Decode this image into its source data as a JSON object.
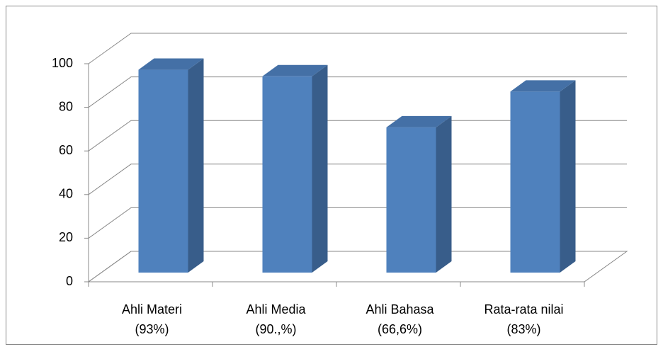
{
  "chart_data": {
    "type": "bar3d",
    "categories": [
      [
        "Ahli Materi",
        "(93%)"
      ],
      [
        "Ahli Media",
        "(90.,%)"
      ],
      [
        "Ahli Bahasa",
        "(66,6%)"
      ],
      [
        "Rata-rata nilai",
        "(83%)"
      ]
    ],
    "values": [
      93,
      90,
      66.6,
      83
    ],
    "color": "#4f81bd",
    "ylim": [
      0,
      100
    ],
    "yticks": [
      0,
      20,
      40,
      60,
      80,
      100
    ],
    "grid": true
  }
}
